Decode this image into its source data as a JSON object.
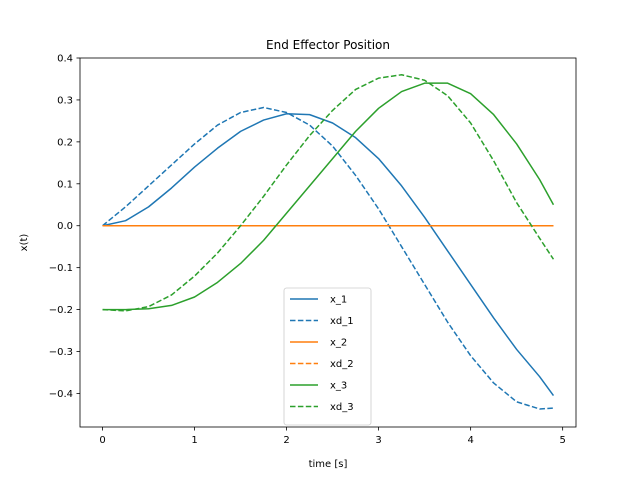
{
  "chart_data": {
    "type": "line",
    "title": "End Effector Position",
    "xlabel": "time [s]",
    "ylabel": "x(t)",
    "xlim": [
      -0.245,
      5.145
    ],
    "ylim": [
      -0.48,
      0.4
    ],
    "xticks": [
      0,
      1,
      2,
      3,
      4,
      5
    ],
    "xtick_labels": [
      "0",
      "1",
      "2",
      "3",
      "4",
      "5"
    ],
    "yticks": [
      -0.4,
      -0.3,
      -0.2,
      -0.1,
      0.0,
      0.1,
      0.2,
      0.3,
      0.4
    ],
    "ytick_labels": [
      "−0.4",
      "−0.3",
      "−0.2",
      "−0.1",
      "0.0",
      "0.1",
      "0.2",
      "0.3",
      "0.4"
    ],
    "grid": false,
    "legend_position": "bottom-center",
    "series": [
      {
        "name": "x_1",
        "color": "#1f77b4",
        "dash": "solid",
        "x": [
          0,
          0.25,
          0.5,
          0.75,
          1.0,
          1.25,
          1.5,
          1.75,
          2.0,
          2.25,
          2.5,
          2.75,
          3.0,
          3.25,
          3.5,
          3.75,
          4.0,
          4.25,
          4.5,
          4.75,
          4.9
        ],
        "y": [
          0.0,
          0.012,
          0.045,
          0.09,
          0.14,
          0.185,
          0.225,
          0.252,
          0.267,
          0.265,
          0.245,
          0.21,
          0.16,
          0.095,
          0.02,
          -0.06,
          -0.14,
          -0.22,
          -0.295,
          -0.36,
          -0.405
        ]
      },
      {
        "name": "xd_1",
        "color": "#1f77b4",
        "dash": "dashed",
        "x": [
          0,
          0.25,
          0.5,
          0.75,
          1.0,
          1.25,
          1.5,
          1.75,
          2.0,
          2.25,
          2.5,
          2.75,
          3.0,
          3.25,
          3.5,
          3.75,
          4.0,
          4.25,
          4.5,
          4.75,
          4.9
        ],
        "y": [
          0.0,
          0.045,
          0.095,
          0.145,
          0.195,
          0.24,
          0.27,
          0.282,
          0.27,
          0.24,
          0.19,
          0.12,
          0.04,
          -0.05,
          -0.14,
          -0.23,
          -0.31,
          -0.375,
          -0.42,
          -0.437,
          -0.435
        ]
      },
      {
        "name": "x_2",
        "color": "#ff7f0e",
        "dash": "solid",
        "x": [
          0,
          4.9
        ],
        "y": [
          0.0,
          0.0
        ]
      },
      {
        "name": "xd_2",
        "color": "#ff7f0e",
        "dash": "dashed",
        "x": [
          0,
          4.9
        ],
        "y": [
          0.0,
          0.0
        ]
      },
      {
        "name": "x_3",
        "color": "#2ca02c",
        "dash": "solid",
        "x": [
          0,
          0.25,
          0.5,
          0.75,
          1.0,
          1.25,
          1.5,
          1.75,
          2.0,
          2.25,
          2.5,
          2.75,
          3.0,
          3.25,
          3.5,
          3.75,
          4.0,
          4.25,
          4.5,
          4.75,
          4.9
        ],
        "y": [
          -0.2,
          -0.2,
          -0.198,
          -0.19,
          -0.17,
          -0.135,
          -0.09,
          -0.035,
          0.03,
          0.095,
          0.16,
          0.225,
          0.28,
          0.32,
          0.34,
          0.34,
          0.315,
          0.265,
          0.195,
          0.11,
          0.05
        ]
      },
      {
        "name": "xd_3",
        "color": "#2ca02c",
        "dash": "dashed",
        "x": [
          0,
          0.25,
          0.5,
          0.75,
          1.0,
          1.25,
          1.5,
          1.75,
          2.0,
          2.25,
          2.5,
          2.75,
          3.0,
          3.25,
          3.5,
          3.75,
          4.0,
          4.25,
          4.5,
          4.75,
          4.9
        ],
        "y": [
          -0.2,
          -0.203,
          -0.193,
          -0.165,
          -0.12,
          -0.065,
          0.0,
          0.07,
          0.145,
          0.215,
          0.275,
          0.325,
          0.352,
          0.36,
          0.347,
          0.31,
          0.245,
          0.155,
          0.055,
          -0.03,
          -0.08
        ]
      }
    ]
  }
}
